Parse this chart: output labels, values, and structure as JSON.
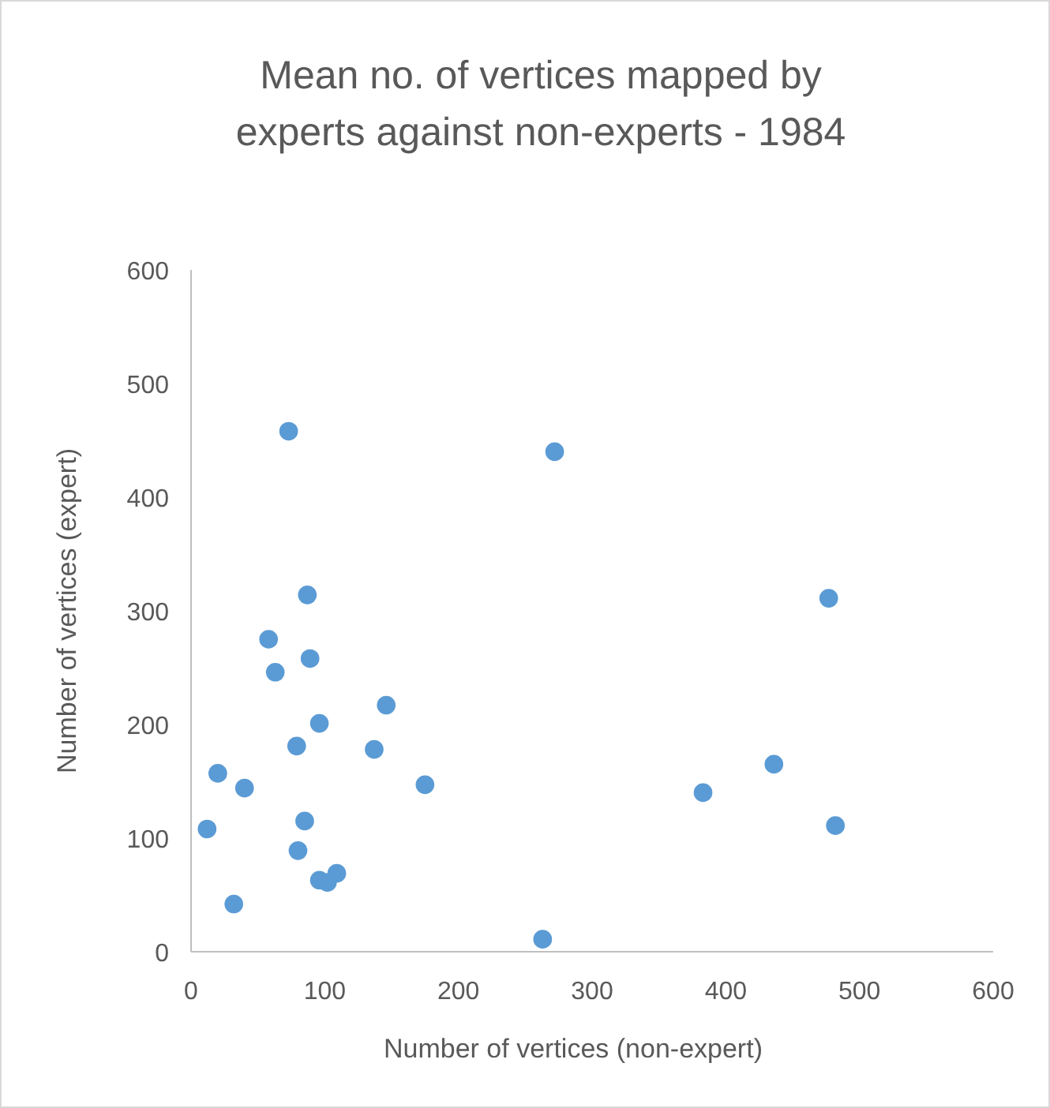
{
  "chart_data": {
    "type": "scatter",
    "title": "Mean no. of vertices mapped by experts against non-experts - 1984",
    "xlabel": "Number of vertices (non-expert)",
    "ylabel": "Number of vertices (expert)",
    "x": [
      73,
      272,
      87,
      477,
      58,
      89,
      63,
      146,
      96,
      79,
      137,
      20,
      175,
      40,
      383,
      436,
      12,
      85,
      482,
      80,
      96,
      102,
      109,
      32,
      263
    ],
    "values": [
      458,
      440,
      314,
      311,
      275,
      258,
      246,
      217,
      201,
      181,
      178,
      157,
      147,
      144,
      140,
      165,
      108,
      115,
      111,
      89,
      63,
      61,
      69,
      42,
      11
    ],
    "color": "#5b9bd5",
    "marker": "circle",
    "xlim": [
      0,
      600
    ],
    "ylim": [
      0,
      600
    ],
    "xticks": [
      0,
      100,
      200,
      300,
      400,
      500,
      600
    ],
    "yticks": [
      0,
      100,
      200,
      300,
      400,
      500,
      600
    ],
    "grid": false
  }
}
